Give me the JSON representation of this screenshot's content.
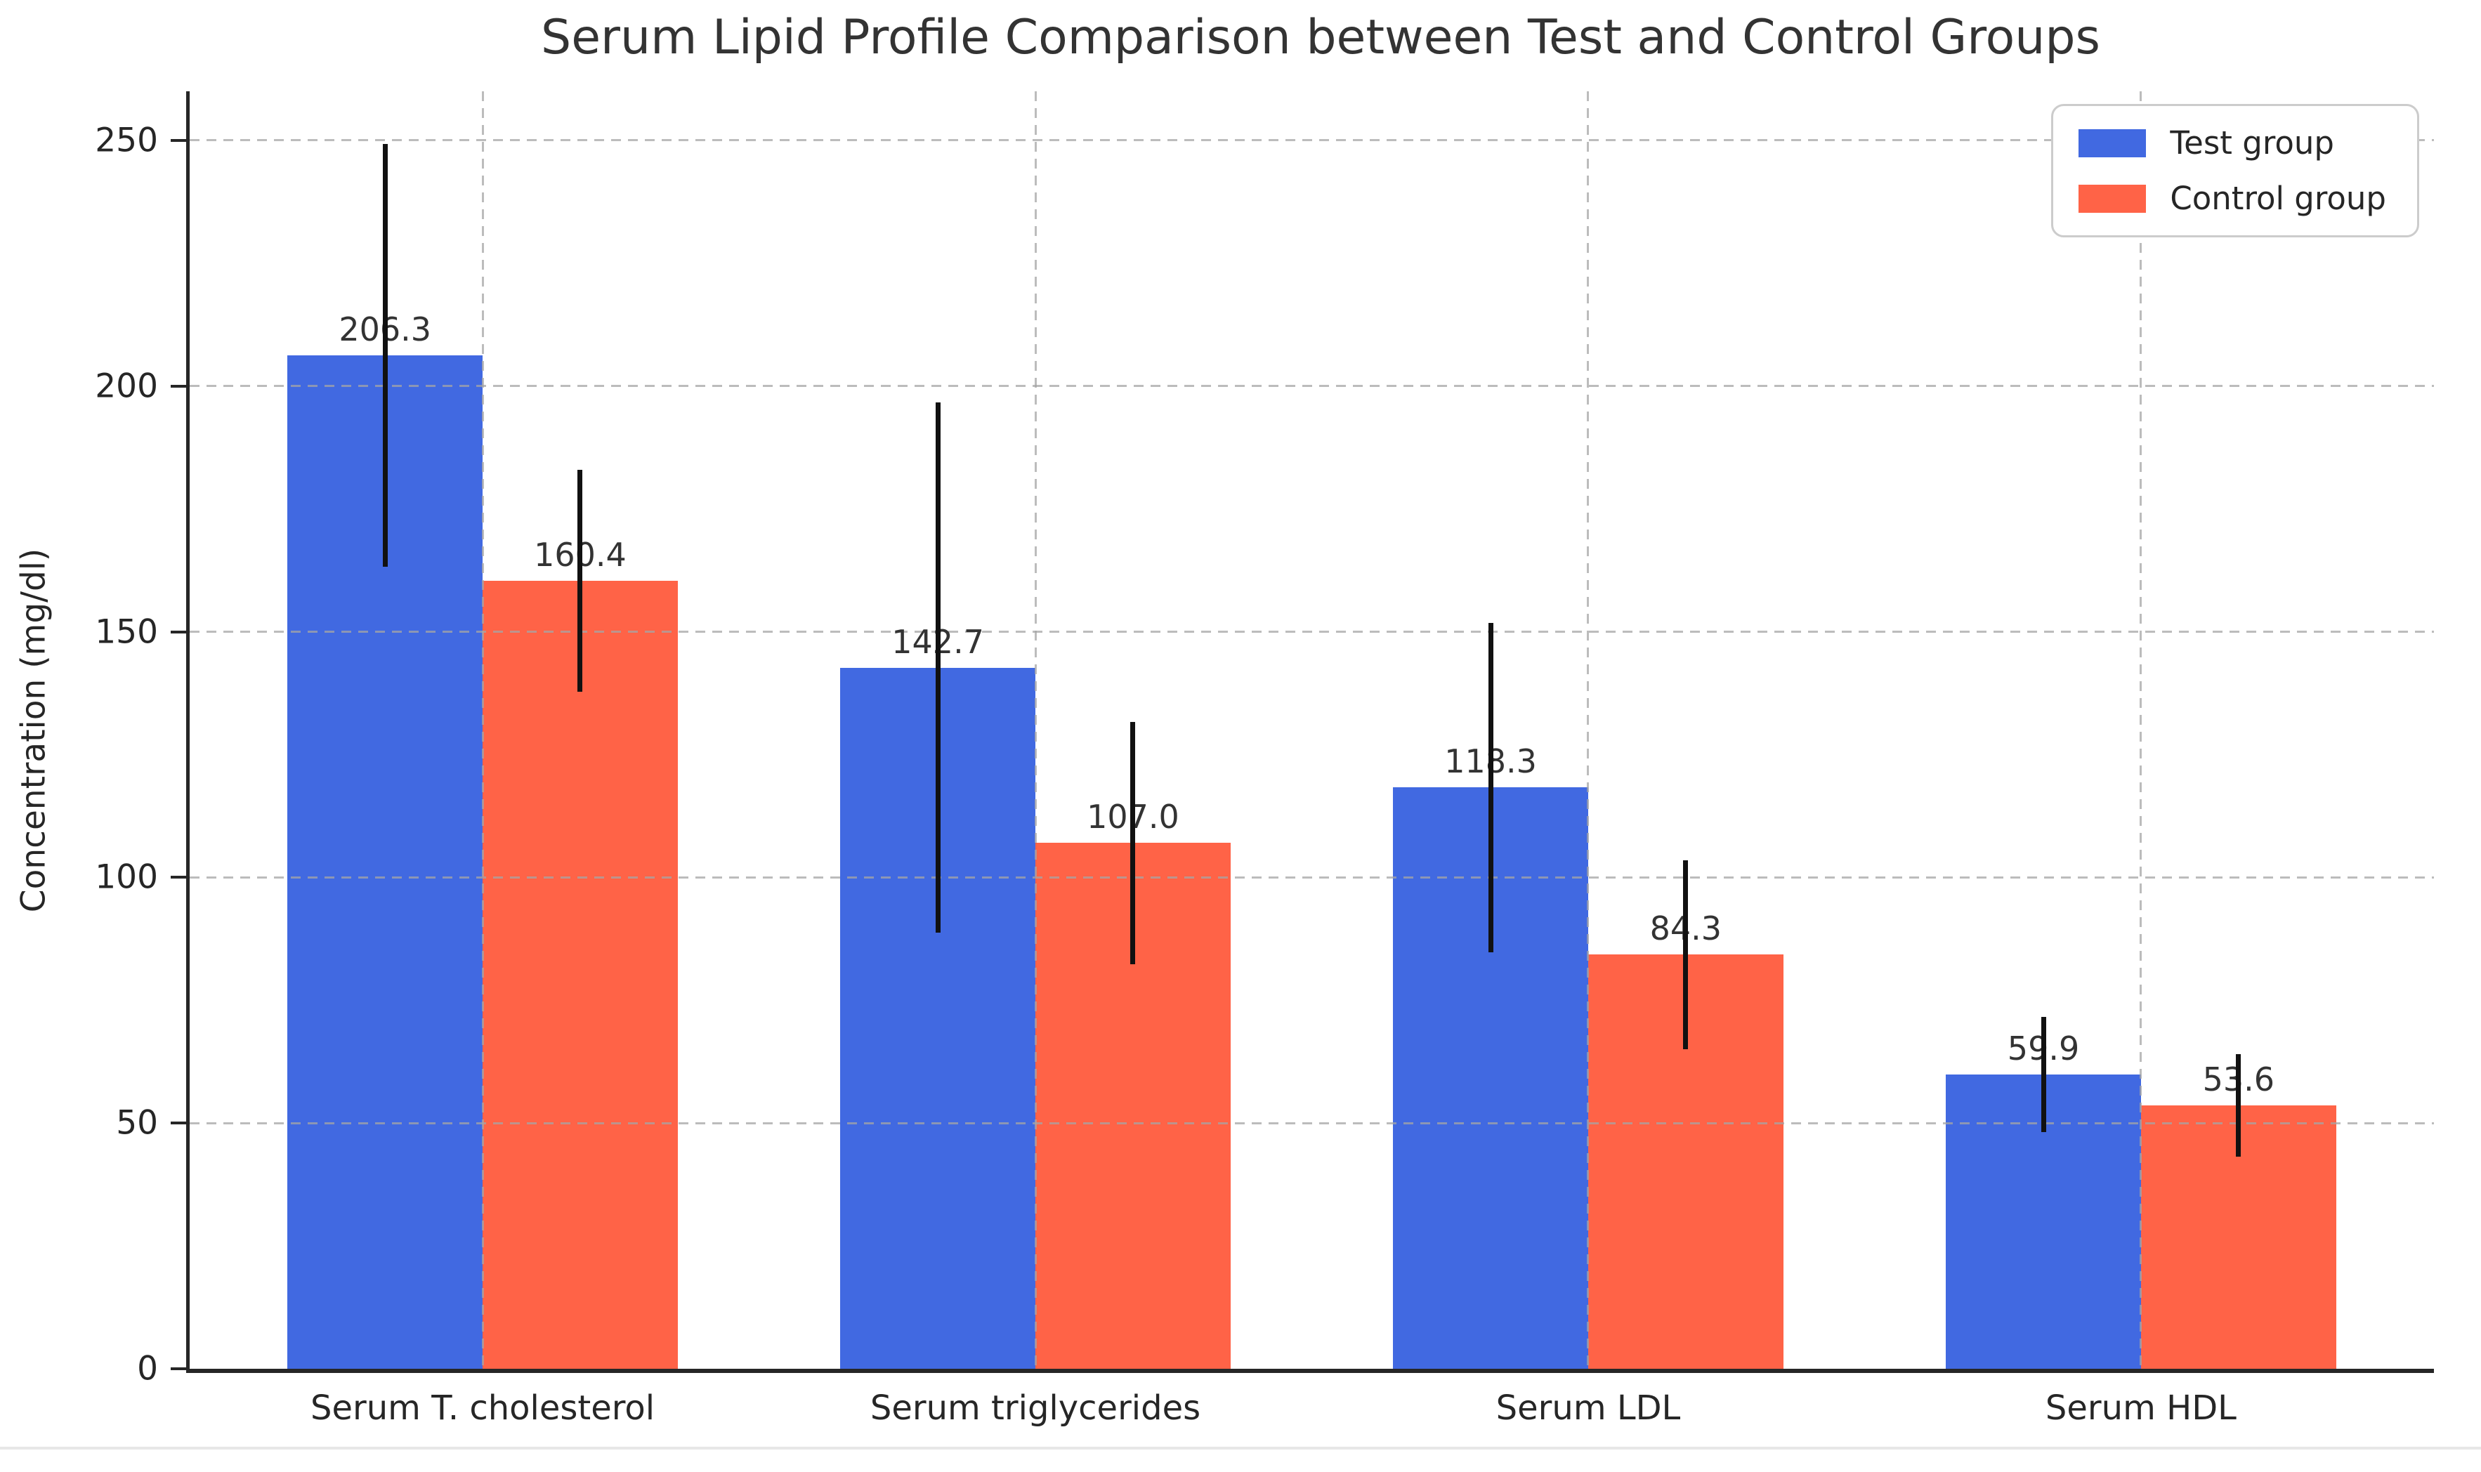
{
  "chart_data": {
    "type": "bar",
    "title": "Serum Lipid Profile Comparison between Test and Control Groups",
    "ylabel": "Concentration (mg/dl)",
    "xlabel": "",
    "categories": [
      "Serum T. cholesterol",
      "Serum triglycerides",
      "Serum LDL",
      "Serum HDL"
    ],
    "series": [
      {
        "name": "Test group",
        "color": "#4169E1",
        "values": [
          206.3,
          142.7,
          118.3,
          59.9
        ],
        "value_labels": [
          "206.3",
          "142.7",
          "118.3",
          "59.9"
        ],
        "errors": [
          43.0,
          54.0,
          33.5,
          11.7
        ]
      },
      {
        "name": "Control group",
        "color": "#FF6347",
        "values": [
          160.4,
          107.0,
          84.3,
          53.6
        ],
        "value_labels": [
          "160.4",
          "107.0",
          "84.3",
          "53.6"
        ],
        "errors": [
          22.6,
          24.6,
          19.2,
          10.5
        ]
      }
    ],
    "y_ticks": [
      "0",
      "50",
      "100",
      "150",
      "200",
      "250"
    ],
    "ylim": [
      0,
      260
    ],
    "grid": {
      "horizontal": true,
      "vertical": true,
      "line_style": "dashed",
      "color": "#ababab"
    },
    "legend": {
      "position": "upper-right",
      "entries": [
        "Test group",
        "Control group"
      ]
    },
    "colors": {
      "error_bar": "#111111",
      "axis": "#262626",
      "title_text": "#333333",
      "tick_text": "#262626",
      "value_label_text": "#333333",
      "legend_border": "#cccccc",
      "bottom_divider": "#e7e7e7"
    }
  }
}
